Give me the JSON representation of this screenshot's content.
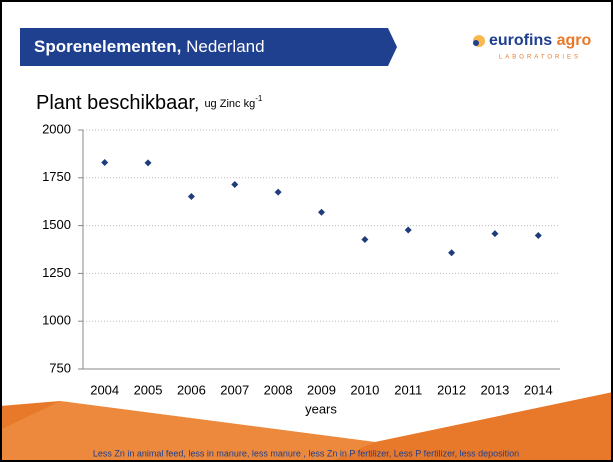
{
  "header": {
    "title_bold": "Sporenelementen,",
    "title_rest": "Nederland"
  },
  "logo": {
    "name": "eurofins",
    "name2": "agro",
    "sub": "LABORATORIES"
  },
  "footer": "Less Zn in animal feed, less in manure, less manure , less Zn in P fertilizer, Less P fertilizer, less deposition",
  "chart_data": {
    "type": "scatter",
    "title": "Plant beschikbaar,",
    "title_unit": "ug Zinc kg",
    "title_unit_sup": "-1",
    "x_label": "years",
    "categories": [
      "2004",
      "2005",
      "2006",
      "2007",
      "2008",
      "2009",
      "2010",
      "2011",
      "2012",
      "2013",
      "2014"
    ],
    "values": [
      1830,
      1828,
      1652,
      1715,
      1675,
      1570,
      1427,
      1477,
      1358,
      1458,
      1448
    ],
    "color": "#1f3d7a",
    "ylim": [
      750,
      2000
    ],
    "yticks": [
      750,
      1000,
      1250,
      1500,
      1750,
      2000
    ],
    "grid": true
  }
}
